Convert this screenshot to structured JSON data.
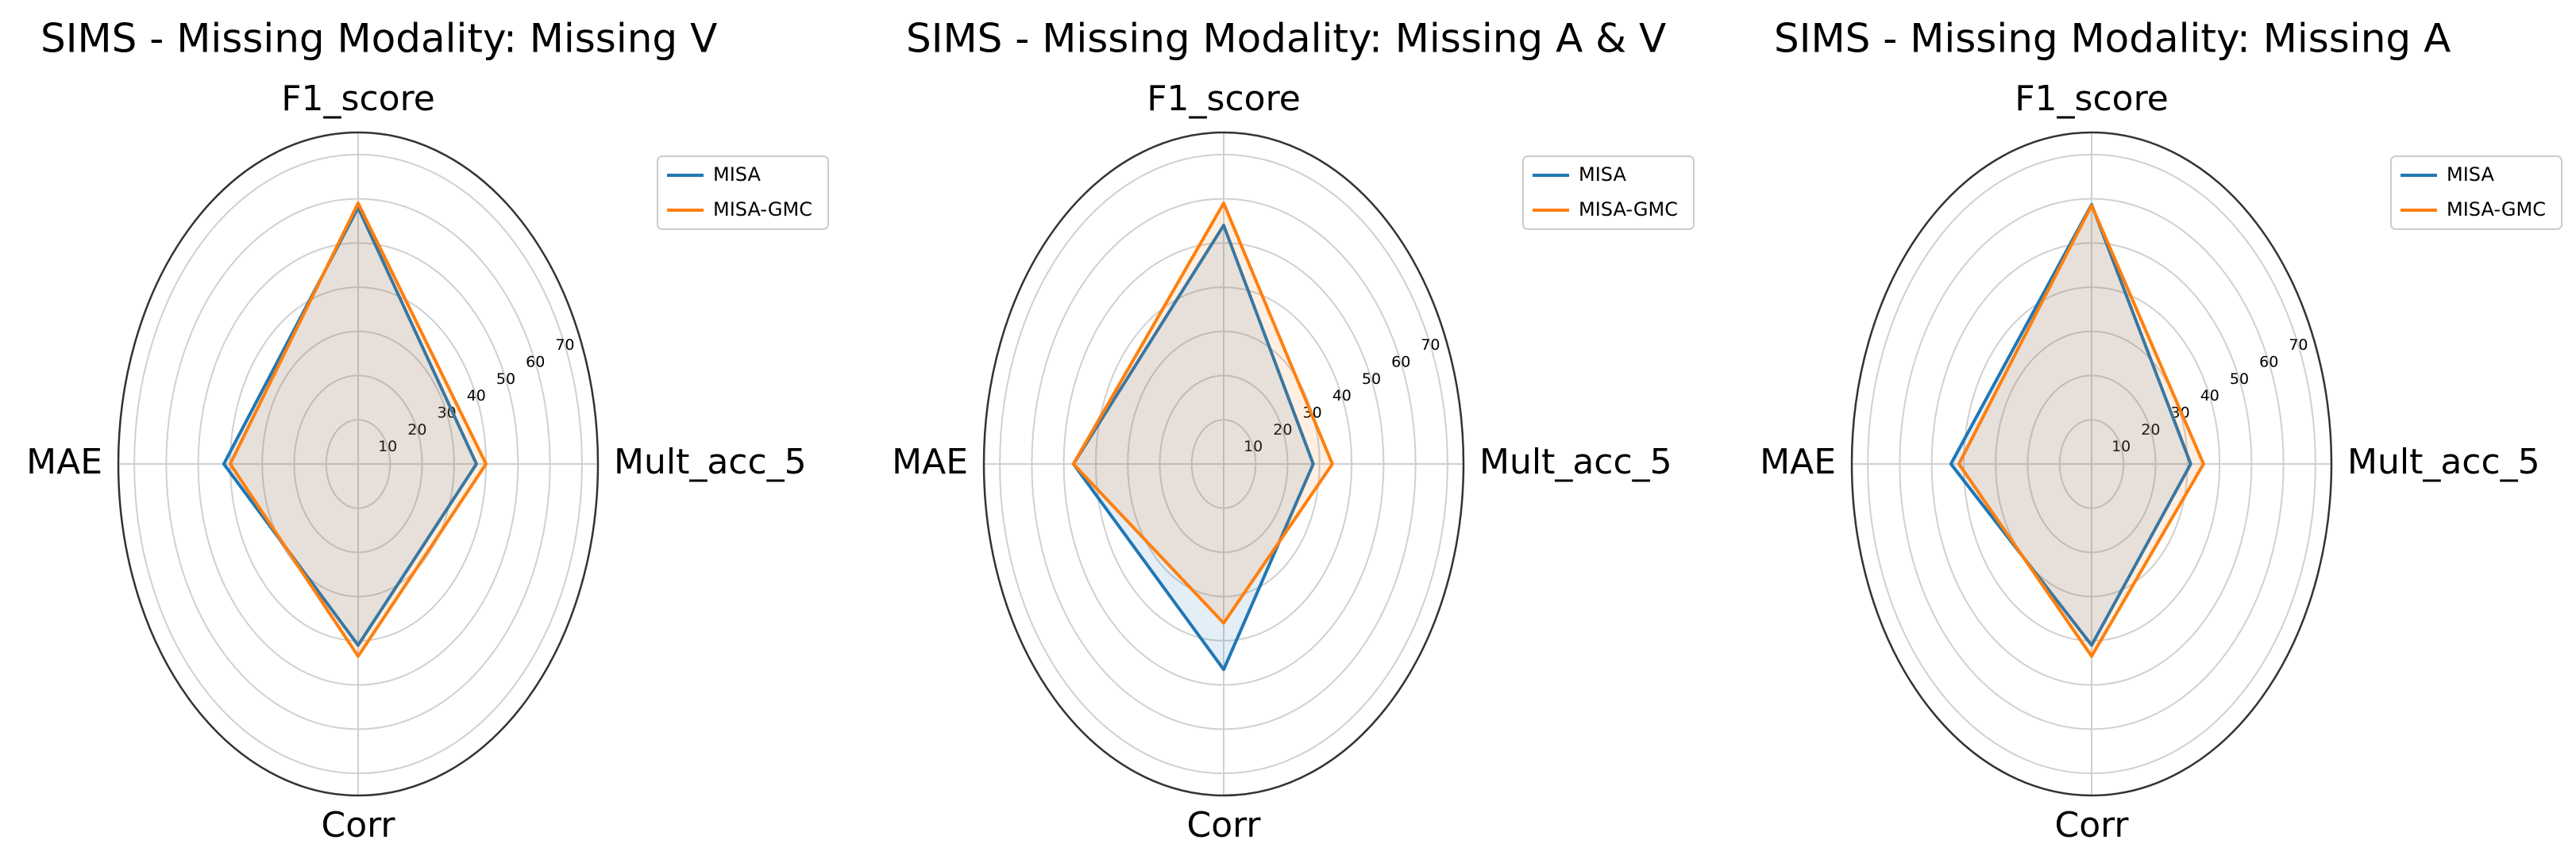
{
  "chart_data": [
    {
      "type": "radar",
      "title": "SIMS - Missing Modality: Missing V",
      "categories": [
        "Mult_acc_5",
        "F1_score",
        "MAE",
        "Corr"
      ],
      "series": [
        {
          "name": "MISA",
          "color": "#1f77b4",
          "values": [
            37,
            58,
            42,
            41
          ]
        },
        {
          "name": "MISA-GMC",
          "color": "#ff7f0e",
          "values": [
            40,
            59,
            40,
            43.5
          ]
        }
      ],
      "ylim": [
        0,
        75
      ],
      "yticks": [
        10,
        20,
        30,
        40,
        50,
        60,
        70
      ],
      "grid": true,
      "legend": "upper right"
    },
    {
      "type": "radar",
      "title": "SIMS - Missing Modality: Missing A & V",
      "categories": [
        "Mult_acc_5",
        "F1_score",
        "MAE",
        "Corr"
      ],
      "series": [
        {
          "name": "MISA",
          "color": "#1f77b4",
          "values": [
            28,
            54,
            47,
            46.5
          ]
        },
        {
          "name": "MISA-GMC",
          "color": "#ff7f0e",
          "values": [
            34,
            59,
            47,
            36
          ]
        }
      ],
      "ylim": [
        0,
        75
      ],
      "yticks": [
        10,
        20,
        30,
        40,
        50,
        60,
        70
      ],
      "grid": true,
      "legend": "upper right"
    },
    {
      "type": "radar",
      "title": "SIMS - Missing Modality: Missing A",
      "categories": [
        "Mult_acc_5",
        "F1_score",
        "MAE",
        "Corr"
      ],
      "series": [
        {
          "name": "MISA",
          "color": "#1f77b4",
          "values": [
            31,
            58.7,
            44,
            41
          ]
        },
        {
          "name": "MISA-GMC",
          "color": "#ff7f0e",
          "values": [
            35,
            58.5,
            41.5,
            43.5
          ]
        }
      ],
      "ylim": [
        0,
        75
      ],
      "yticks": [
        10,
        20,
        30,
        40,
        50,
        60,
        70
      ],
      "grid": true,
      "legend": "upper right"
    }
  ]
}
